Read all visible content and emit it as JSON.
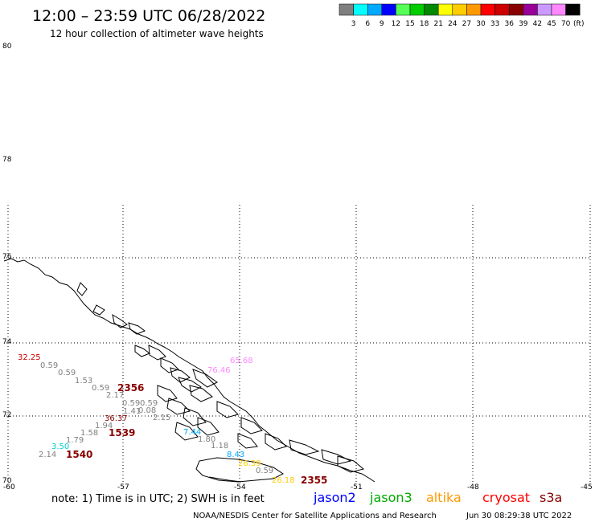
{
  "header": {
    "title": "12:00 – 23:59 UTC 06/28/2022",
    "subtitle": "12 hour collection of altimeter wave heights"
  },
  "legend": {
    "swatches": [
      {
        "label": "3",
        "color": "#7f7f7f"
      },
      {
        "label": "6",
        "color": "#00ffff"
      },
      {
        "label": "9",
        "color": "#00aaff"
      },
      {
        "label": "12",
        "color": "#0000ff"
      },
      {
        "label": "15",
        "color": "#55ff55"
      },
      {
        "label": "18",
        "color": "#00cc00"
      },
      {
        "label": "21",
        "color": "#008800"
      },
      {
        "label": "24",
        "color": "#ffff00"
      },
      {
        "label": "27",
        "color": "#ffcc00"
      },
      {
        "label": "30",
        "color": "#ff9900"
      },
      {
        "label": "33",
        "color": "#ff0000"
      },
      {
        "label": "36",
        "color": "#cc0000"
      },
      {
        "label": "39",
        "color": "#880000"
      },
      {
        "label": "42",
        "color": "#990099"
      },
      {
        "label": "45",
        "color": "#cc99ff"
      },
      {
        "label": "70",
        "color": "#ff88ff"
      },
      {
        "label": "",
        "color": "#000000"
      }
    ],
    "unit": "(ft)"
  },
  "axes": {
    "lat_labels": [
      "80",
      "78",
      "76",
      "74",
      "72",
      "70"
    ],
    "lon_labels": [
      "-60",
      "-57",
      "-54",
      "-51",
      "-48",
      "-45"
    ]
  },
  "observations": [
    {
      "text": "32.25",
      "color": "#cc0000"
    },
    {
      "text": "0.59",
      "color": "#808080"
    },
    {
      "text": "0.59",
      "color": "#808080"
    },
    {
      "text": "1.53",
      "color": "#808080"
    },
    {
      "text": "0.59",
      "color": "#808080"
    },
    {
      "text": "2.17",
      "color": "#808080"
    },
    {
      "text": "0.59",
      "color": "#808080"
    },
    {
      "text": "0.59",
      "color": "#808080"
    },
    {
      "text": "1.41",
      "color": "#808080"
    },
    {
      "text": "0.08",
      "color": "#808080"
    },
    {
      "text": "2.15",
      "color": "#808080"
    },
    {
      "text": "36.37",
      "color": "#880000"
    },
    {
      "text": "1.94",
      "color": "#808080"
    },
    {
      "text": "1.58",
      "color": "#808080"
    },
    {
      "text": "1.79",
      "color": "#808080"
    },
    {
      "text": "3.50",
      "color": "#00cccc"
    },
    {
      "text": "2.14",
      "color": "#808080"
    },
    {
      "text": "7.44",
      "color": "#00aaff"
    },
    {
      "text": "1.80",
      "color": "#808080"
    },
    {
      "text": "1.18",
      "color": "#808080"
    },
    {
      "text": "8.43",
      "color": "#00aaff"
    },
    {
      "text": "26.39",
      "color": "#ffcc00"
    },
    {
      "text": "0.59",
      "color": "#808080"
    },
    {
      "text": "26.18",
      "color": "#ffcc00"
    },
    {
      "text": "65.68",
      "color": "#ff88ff"
    },
    {
      "text": "76.46",
      "color": "#ff88ff"
    }
  ],
  "passes": [
    {
      "text": "2356",
      "color": "#880000"
    },
    {
      "text": "1539",
      "color": "#880000"
    },
    {
      "text": "1540",
      "color": "#880000"
    },
    {
      "text": "2355",
      "color": "#880000"
    }
  ],
  "footer": {
    "note": "note: 1) Time is in UTC; 2) SWH is in feet",
    "missions": [
      {
        "name": "jason2",
        "color": "#0000ff"
      },
      {
        "name": "jason3",
        "color": "#00aa00"
      },
      {
        "name": "altika",
        "color": "#ff9900"
      },
      {
        "name": "cryosat",
        "color": "#ff0000"
      },
      {
        "name": "s3a",
        "color": "#880000"
      }
    ],
    "credit": "NOAA/NESDIS Center for Satellite Applications and Research",
    "timestamp": "Jun 30 08:29:38 UTC 2022"
  }
}
